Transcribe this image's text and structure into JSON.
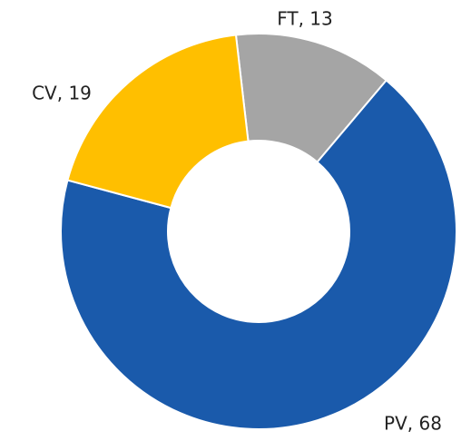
{
  "chart_data": {
    "type": "pie",
    "categories": [
      "FT",
      "PV",
      "CV"
    ],
    "values": [
      13,
      68,
      19
    ],
    "value_labels": [
      "FT, 13",
      "PV, 68",
      "CV, 19"
    ],
    "colors": [
      "#a5a5a5",
      "#1a5aab",
      "#ffbf00"
    ]
  }
}
